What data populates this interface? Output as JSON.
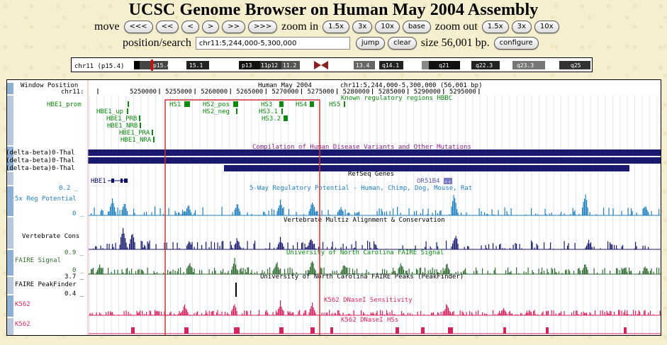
{
  "title": "UCSC Genome Browser on Human May 2004 Assembly",
  "nav": {
    "move_label": "move",
    "move_buttons": [
      "<<<",
      "<<",
      "<",
      ">",
      ">>",
      ">>>"
    ],
    "zoom_in_label": "zoom in",
    "zoom_in_buttons": [
      "1.5x",
      "3x",
      "10x",
      "base"
    ],
    "zoom_out_label": "zoom out",
    "zoom_out_buttons": [
      "1.5x",
      "3x",
      "10x"
    ]
  },
  "search": {
    "label": "position/search",
    "value": "chr11:5,244,000-5,300,000",
    "jump": "jump",
    "clear": "clear",
    "size_text": "size 56,001 bp.",
    "configure": "configure"
  },
  "ideogram": {
    "chrom_label": "chr11 (p15.4)",
    "bands": [
      "p15.4",
      "15.1",
      "p13",
      "11p12",
      "11.2",
      "13.4",
      "q14.1",
      "q21",
      "q22.3",
      "q23.3",
      "q25"
    ]
  },
  "tracks": {
    "window_position": "Window Position",
    "chrom": "chr11:",
    "assembly": "Human May 2004",
    "range": "chr11:5,244,000-5,300,000 (56,001 bp)",
    "ticks": [
      "5250000",
      "5255000",
      "5260000",
      "5265000",
      "5270000",
      "5275000",
      "5280000",
      "5285000",
      "5290000",
      "5295000"
    ],
    "regulatory_title": "Known regulatory regions HBBC",
    "hbe1_prom": "HBE1_prom",
    "reg_elements": [
      "HBE1_up",
      "HBE1_PRB",
      "HBE1_NRB",
      "HBE1_PRA",
      "HBE1_NRA"
    ],
    "hs_elements": [
      "HS1",
      "HS2_pos",
      "HS2_neg",
      "HS3",
      "HS3.1",
      "HS3.2",
      "HS4",
      "HS5"
    ],
    "disease_title": "Compilation of Human Disease Variants and Other Mutations",
    "disease_labels": [
      "(delta-beta)0-Thal",
      "(delta-beta)0-Thal",
      "(delta-beta)0-Thal"
    ],
    "refseq_title": "RefSeq Genes",
    "refseq_genes": [
      "HBE1",
      "OR51B4"
    ],
    "reg_potential_title": "5-Way Regulatory Potential - Human, Chimp, Dog, Mouse, Rat",
    "reg_potential_label": "5x Reg Potential",
    "reg_potential_max": "0.2 _",
    "reg_potential_min": "0 _",
    "cons_title": "Vertebrate Multiz Alignment & Conservation",
    "cons_label": "Vertebrate Cons",
    "faire_title": "University of North Carolina FAIRE Signal",
    "faire_label": "FAIRE Signal",
    "faire_max": "0.9 _",
    "faire_min": "0 _",
    "peaks_max": "3.7 _",
    "peaks_title": "University of North Carolina FAIRE Peaks (PeakFinder)",
    "peaks_label": "FAIRE PeakFinder",
    "peaks_min": "0.4 _",
    "dnase_title": "K562 DNaseI Sensitivity",
    "dnase_label": "K562",
    "hss_title": "K562 DNaseI HSs",
    "hss_label": "K562"
  },
  "colors": {
    "green": "#0c8a0c",
    "navy": "#191970",
    "blue": "#1e7fbf",
    "purple": "#8b1a8b",
    "faire": "#2f6b2f",
    "dnase": "#d6245c",
    "highlight_box": "#cc3333"
  }
}
